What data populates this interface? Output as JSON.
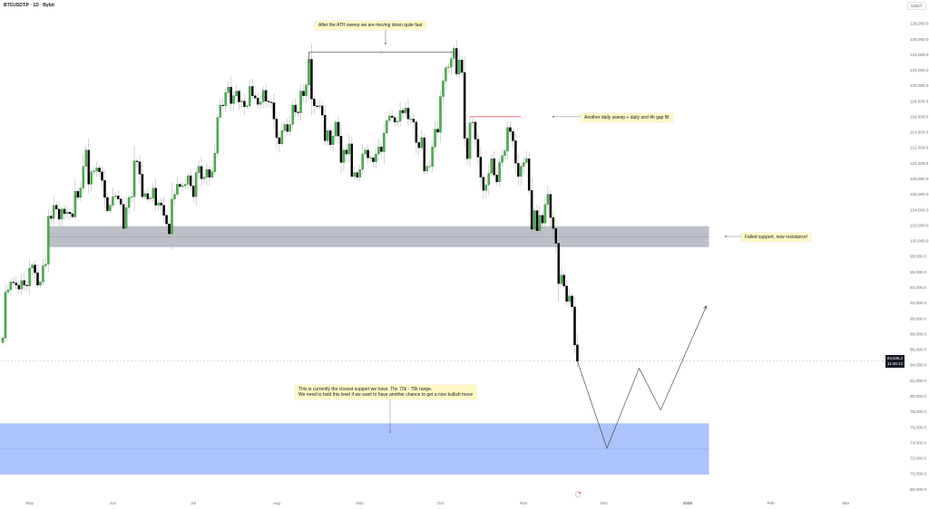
{
  "header": {
    "title": "BTCUSDT.P · 1D · Bybit",
    "currency": "USDT"
  },
  "price_tag": {
    "price": "84,536.2",
    "countdown": "11:46:12"
  },
  "notes": {
    "ath_sweep": "After the ATH sweep we are moving down quite fast",
    "daily_sweep": "Another daily sweep + daily and 4h gap fill",
    "failed_support": "Failed support, now resistance!",
    "support_line1": "This is currently the closest support we have. The 72k - 75k range.",
    "support_line2": "We need to hold this level if we want to have another chance to get a nice bullish move"
  },
  "colors": {
    "up": "#4caf50",
    "down": "#000000",
    "resistance_zone": "#b2b5be",
    "support_zone": "#a8c0fb",
    "sweep_line": "#f23645",
    "note_bg": "#fff9c4"
  },
  "chart_data": {
    "type": "candlestick",
    "symbol": "BTCUSDT.P",
    "interval": "1D",
    "start_date": "2025-04-21",
    "closes_k": [
      87.5,
      93.4,
      93.7,
      94.7,
      94.6,
      94.3,
      93.8,
      94.9,
      94.3,
      94.2,
      96.5,
      96.9,
      95.9,
      94.3,
      94.7,
      96.8,
      97.0,
      103.2,
      102.9,
      104.6,
      104.1,
      102.8,
      104.1,
      103.5,
      103.7,
      103.5,
      103.1,
      106.4,
      105.6,
      106.8,
      109.6,
      111.7,
      107.3,
      108.9,
      109.0,
      109.4,
      108.9,
      107.8,
      105.6,
      103.9,
      104.6,
      105.7,
      105.8,
      105.4,
      104.7,
      101.6,
      104.3,
      105.6,
      105.7,
      110.3,
      110.2,
      108.6,
      105.7,
      106.1,
      105.4,
      105.5,
      106.8,
      104.6,
      104.9,
      104.6,
      103.3,
      102.2,
      100.9,
      105.4,
      106.0,
      107.3,
      107.0,
      107.1,
      107.3,
      108.4,
      107.1,
      105.7,
      108.8,
      109.6,
      108.0,
      108.2,
      109.2,
      108.2,
      108.9,
      111.3,
      115.9,
      117.5,
      117.4,
      119.1,
      119.8,
      117.7,
      118.7,
      119.3,
      117.9,
      118.0,
      117.3,
      117.4,
      119.9,
      118.7,
      118.4,
      117.6,
      117.9,
      119.4,
      118.0,
      117.9,
      117.8,
      115.7,
      113.3,
      112.5,
      114.2,
      115.0,
      114.1,
      115.0,
      117.5,
      116.6,
      116.5,
      119.3,
      118.7,
      120.1,
      123.4,
      118.3,
      117.4,
      117.3,
      117.4,
      116.2,
      112.9,
      114.2,
      112.4,
      113.5,
      115.3,
      113.5,
      110.1,
      111.7,
      111.2,
      112.5,
      108.3,
      108.8,
      108.2,
      109.2,
      111.2,
      111.7,
      110.7,
      110.7,
      110.2,
      111.2,
      112.1,
      111.5,
      113.9,
      115.5,
      116.1,
      115.9,
      115.3,
      115.4,
      116.8,
      116.5,
      117.1,
      115.7,
      115.7,
      115.3,
      112.7,
      112.0,
      113.3,
      109.0,
      109.6,
      109.6,
      112.1,
      114.4,
      114.0,
      118.6,
      120.6,
      122.3,
      122.4,
      123.5,
      124.8,
      121.5,
      123.3,
      121.7,
      113.2,
      110.6,
      115.2,
      115.3,
      113.1,
      110.8,
      108.2,
      106.5,
      107.2,
      108.7,
      110.6,
      108.5,
      107.6,
      110.1,
      111.0,
      111.6,
      114.6,
      114.1,
      112.9,
      110.0,
      108.3,
      109.6,
      110.1,
      110.6,
      106.5,
      101.5,
      103.9,
      101.3,
      103.3,
      102.3,
      104.7,
      106.0,
      103.0,
      101.6,
      99.7,
      94.5,
      95.6,
      94.2,
      92.2,
      92.9,
      91.5,
      86.6,
      84.5
    ],
    "current_price": 84536.2,
    "y_ticks": [
      "128,000.0",
      "126,000.0",
      "124,000.0",
      "122,000.0",
      "120,000.0",
      "118,000.0",
      "116,000.0",
      "114,000.0",
      "112,000.0",
      "110,000.0",
      "108,000.0",
      "106,000.0",
      "104,000.0",
      "102,000.0",
      "100,000.0",
      "98,000.0",
      "96,000.0",
      "94,000.0",
      "92,000.0",
      "90,000.0",
      "88,000.0",
      "86,000.0",
      "84,000.0",
      "82,000.0",
      "80,000.0",
      "78,000.0",
      "76,000.0",
      "74,000.0",
      "72,000.0",
      "70,000.0",
      "68,000.0"
    ],
    "ylim": [
      68000,
      128000
    ],
    "x_ticks": [
      {
        "label": "May",
        "date": "2025-05-01"
      },
      {
        "label": "Jun",
        "date": "2025-06-01"
      },
      {
        "label": "Jul",
        "date": "2025-07-01"
      },
      {
        "label": "Aug",
        "date": "2025-08-01"
      },
      {
        "label": "Sep",
        "date": "2025-09-01"
      },
      {
        "label": "Oct",
        "date": "2025-10-01"
      },
      {
        "label": "Nov",
        "date": "2025-11-01"
      },
      {
        "label": "Dec",
        "date": "2025-12-01"
      },
      {
        "label": "2026",
        "date": "2026-01-01"
      },
      {
        "label": "Feb",
        "date": "2026-02-01"
      },
      {
        "label": "Mar",
        "date": "2026-03-01"
      }
    ],
    "resistance_zone": {
      "from_date": "2025-05-08",
      "to_date": "2026-01-09",
      "low": 99200,
      "high": 101900
    },
    "support_zone": {
      "from_date": "2025-04-10",
      "to_date": "2026-01-09",
      "low": 69900,
      "high": 76500
    },
    "ath_bracket": {
      "from_date": "2025-08-13",
      "to_date": "2025-10-06",
      "price": 124300
    },
    "sweep_line": {
      "from_date": "2025-10-12",
      "to_date": "2025-10-31",
      "price": 116000
    },
    "projection": [
      {
        "date": "2025-11-21",
        "price": 84500
      },
      {
        "date": "2025-12-02",
        "price": 73300
      },
      {
        "date": "2025-12-14",
        "price": 83600
      },
      {
        "date": "2025-12-22",
        "price": 78200
      },
      {
        "date": "2026-01-08",
        "price": 91600
      }
    ]
  }
}
